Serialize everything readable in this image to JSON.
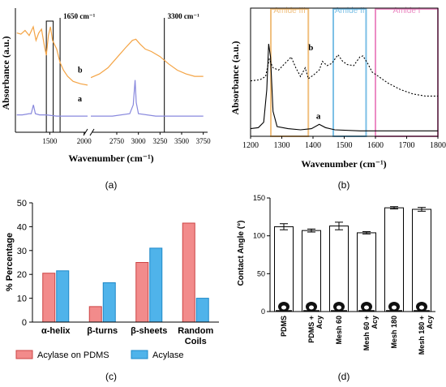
{
  "panel_labels": [
    "(a)",
    "(b)",
    "(c)",
    "(d)"
  ],
  "chart_data": [
    {
      "panel": "(a)",
      "type": "line",
      "xlabel": "Wavenumber (cm⁻¹)",
      "ylabel": "Absorbance (a.u.)",
      "xticks": [
        "1500",
        "2000",
        "2750",
        "3000",
        "3250",
        "3500",
        "3750"
      ],
      "xlim_left": [
        1000,
        2050
      ],
      "xlim_right": [
        2450,
        3800
      ],
      "annotations": [
        "1650 cm⁻¹",
        "3300 cm⁻¹"
      ],
      "vlines": [
        1650,
        3300
      ],
      "highlight_box": [
        1450,
        1550
      ],
      "series": [
        {
          "name": "b",
          "color": "#f4a445",
          "left": [
            [
              1020,
              0.8
            ],
            [
              1080,
              0.79
            ],
            [
              1140,
              0.82
            ],
            [
              1200,
              0.78
            ],
            [
              1260,
              0.85
            ],
            [
              1300,
              0.74
            ],
            [
              1340,
              0.8
            ],
            [
              1380,
              0.83
            ],
            [
              1420,
              0.7
            ],
            [
              1450,
              0.62
            ],
            [
              1480,
              0.78
            ],
            [
              1510,
              0.85
            ],
            [
              1540,
              0.74
            ],
            [
              1600,
              0.67
            ],
            [
              1650,
              0.56
            ],
            [
              1700,
              0.5
            ],
            [
              1760,
              0.45
            ],
            [
              1840,
              0.41
            ],
            [
              1950,
              0.39
            ],
            [
              2050,
              0.38
            ]
          ],
          "right": [
            [
              2450,
              0.44
            ],
            [
              2550,
              0.47
            ],
            [
              2650,
              0.52
            ],
            [
              2750,
              0.6
            ],
            [
              2850,
              0.68
            ],
            [
              2930,
              0.74
            ],
            [
              2970,
              0.75
            ],
            [
              3020,
              0.71
            ],
            [
              3080,
              0.67
            ],
            [
              3150,
              0.65
            ],
            [
              3250,
              0.61
            ],
            [
              3350,
              0.55
            ],
            [
              3450,
              0.5
            ],
            [
              3550,
              0.47
            ],
            [
              3650,
              0.45
            ],
            [
              3750,
              0.45
            ]
          ]
        },
        {
          "name": "a",
          "color": "#8888dd",
          "left": [
            [
              1020,
              0.14
            ],
            [
              1100,
              0.14
            ],
            [
              1200,
              0.15
            ],
            [
              1230,
              0.15
            ],
            [
              1262,
              0.22
            ],
            [
              1290,
              0.15
            ],
            [
              1350,
              0.14
            ],
            [
              1450,
              0.14
            ],
            [
              1600,
              0.13
            ],
            [
              1800,
              0.13
            ],
            [
              2050,
              0.13
            ]
          ],
          "right": [
            [
              2450,
              0.13
            ],
            [
              2700,
              0.13
            ],
            [
              2900,
              0.15
            ],
            [
              2940,
              0.22
            ],
            [
              2962,
              0.42
            ],
            [
              2975,
              0.24
            ],
            [
              3000,
              0.15
            ],
            [
              3200,
              0.13
            ],
            [
              3500,
              0.13
            ],
            [
              3750,
              0.13
            ]
          ]
        }
      ]
    },
    {
      "panel": "(b)",
      "type": "line",
      "xlabel": "Wavenumber (cm⁻¹)",
      "ylabel": "Absorbance (a.u.)",
      "xlim": [
        1200,
        1800
      ],
      "xticks": [
        1200,
        1300,
        1400,
        1500,
        1600,
        1700,
        1800
      ],
      "regions": [
        {
          "name": "Amide III",
          "range": [
            1265,
            1385
          ],
          "color": "#f0c080"
        },
        {
          "name": "Amide II",
          "range": [
            1465,
            1570
          ],
          "color": "#7cc0e6"
        },
        {
          "name": "Amide I",
          "range": [
            1600,
            1800
          ],
          "color": "#ec8cc4"
        }
      ],
      "series": [
        {
          "name": "b",
          "style": "dotted",
          "points": [
            [
              1200,
              0.48
            ],
            [
              1230,
              0.49
            ],
            [
              1248,
              0.52
            ],
            [
              1260,
              0.68
            ],
            [
              1272,
              0.6
            ],
            [
              1290,
              0.58
            ],
            [
              1310,
              0.64
            ],
            [
              1330,
              0.7
            ],
            [
              1345,
              0.6
            ],
            [
              1360,
              0.52
            ],
            [
              1375,
              0.6
            ],
            [
              1385,
              0.5
            ],
            [
              1400,
              0.53
            ],
            [
              1420,
              0.58
            ],
            [
              1430,
              0.66
            ],
            [
              1445,
              0.62
            ],
            [
              1460,
              0.64
            ],
            [
              1480,
              0.72
            ],
            [
              1495,
              0.66
            ],
            [
              1510,
              0.63
            ],
            [
              1530,
              0.62
            ],
            [
              1550,
              0.7
            ],
            [
              1560,
              0.71
            ],
            [
              1575,
              0.64
            ],
            [
              1590,
              0.56
            ],
            [
              1610,
              0.52
            ],
            [
              1640,
              0.46
            ],
            [
              1680,
              0.4
            ],
            [
              1720,
              0.36
            ],
            [
              1760,
              0.34
            ],
            [
              1800,
              0.34
            ]
          ]
        },
        {
          "name": "a",
          "style": "solid",
          "points": [
            [
              1200,
              0.04
            ],
            [
              1225,
              0.05
            ],
            [
              1242,
              0.1
            ],
            [
              1252,
              0.4
            ],
            [
              1258,
              0.82
            ],
            [
              1264,
              0.7
            ],
            [
              1272,
              0.2
            ],
            [
              1285,
              0.06
            ],
            [
              1320,
              0.04
            ],
            [
              1360,
              0.03
            ],
            [
              1395,
              0.04
            ],
            [
              1420,
              0.08
            ],
            [
              1440,
              0.05
            ],
            [
              1470,
              0.03
            ],
            [
              1550,
              0.02
            ],
            [
              1650,
              0.02
            ],
            [
              1800,
              0.02
            ]
          ]
        }
      ]
    },
    {
      "panel": "(c)",
      "type": "bar",
      "ylabel": "% Percentage",
      "ylim": [
        0,
        50
      ],
      "yticks": [
        0,
        10,
        20,
        30,
        40,
        50
      ],
      "categories": [
        "α-helix",
        "β-turns",
        "β-sheets",
        "Random Coils"
      ],
      "series": [
        {
          "name": "Acylase on PDMS",
          "color": "#f28b8b",
          "values": [
            20.5,
            6.5,
            25,
            41.5
          ]
        },
        {
          "name": "Acylase",
          "color": "#4fb3ea",
          "values": [
            21.5,
            16.5,
            31,
            10
          ]
        }
      ]
    },
    {
      "panel": "(d)",
      "type": "bar",
      "ylabel": "Contact Angle (°)",
      "ylim": [
        0,
        150
      ],
      "yticks": [
        0,
        50,
        100,
        150
      ],
      "categories": [
        "PDMS",
        "PDMS + Acy",
        "Mesh 60",
        "Mesh 60 + Acy",
        "Mesh 180",
        "Mesh 180 + Acy"
      ],
      "values": [
        112,
        107,
        113,
        104,
        137,
        135
      ],
      "errors": [
        4,
        2,
        5,
        1.5,
        1.5,
        2.5
      ]
    }
  ]
}
